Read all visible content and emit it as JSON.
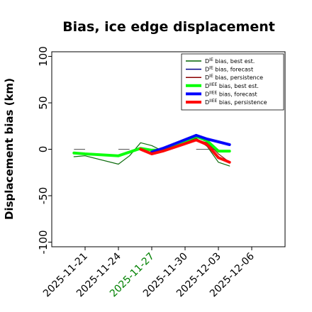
{
  "chart_data": {
    "type": "line",
    "title": "Bias, ice edge displacement",
    "xlabel": "",
    "ylabel": "Displacement bias (km)",
    "ylim": [
      -105,
      105
    ],
    "xlim": [
      "2025-11-18",
      "2025-12-09"
    ],
    "y_ticks": [
      100,
      50,
      0,
      -50,
      -100
    ],
    "x_ticks": [
      {
        "date": "2025-11-21",
        "label": "2025-11-21",
        "color": "#000000"
      },
      {
        "date": "2025-11-24",
        "label": "2025-11-24",
        "color": "#000000"
      },
      {
        "date": "2025-11-27",
        "label": "2025-11-27",
        "color": "#008000"
      },
      {
        "date": "2025-11-30",
        "label": "2025-11-30",
        "color": "#000000"
      },
      {
        "date": "2025-12-03",
        "label": "2025-12-03",
        "color": "#000000"
      },
      {
        "date": "2025-12-06",
        "label": "2025-12-06",
        "color": "#000000"
      }
    ],
    "grid": false,
    "legend_position": "upper-right",
    "zero_line": {
      "segments": [
        [
          "2025-11-20",
          "2025-11-21"
        ],
        [
          "2025-11-24",
          "2025-11-25"
        ],
        [
          "2025-11-27",
          "2025-11-28"
        ],
        [
          "2025-12-01",
          "2025-12-03"
        ]
      ],
      "y": 0,
      "color": "#555555"
    },
    "series": [
      {
        "name": "D^IE bias, best est.",
        "legend_main": "D",
        "legend_sup": "IE",
        "legend_rest": " bias, best est.",
        "color": "#006400",
        "style": "thin",
        "points": [
          [
            "2025-11-20",
            -8
          ],
          [
            "2025-11-21",
            -7
          ],
          [
            "2025-11-24",
            -16
          ],
          [
            "2025-11-25",
            -7
          ],
          [
            "2025-11-26",
            7
          ],
          [
            "2025-11-27",
            4
          ],
          [
            "2025-11-28",
            -2
          ],
          [
            "2025-12-01",
            12
          ],
          [
            "2025-12-02",
            3
          ],
          [
            "2025-12-03",
            -14
          ],
          [
            "2025-12-04",
            -18
          ]
        ]
      },
      {
        "name": "D^IE bias, forecast",
        "legend_main": "D",
        "legend_sup": "IE",
        "legend_rest": " bias, forecast",
        "color": "#00008B",
        "style": "thin",
        "points": [
          [
            "2025-11-27",
            -3
          ],
          [
            "2025-11-28",
            1
          ],
          [
            "2025-12-01",
            16
          ],
          [
            "2025-12-02",
            11
          ],
          [
            "2025-12-03",
            8
          ],
          [
            "2025-12-04",
            5
          ]
        ]
      },
      {
        "name": "D^IE bias, persistence",
        "legend_main": "D",
        "legend_sup": "IE",
        "legend_rest": " bias, persistence",
        "color": "#8B0000",
        "style": "thin",
        "points": [
          [
            "2025-11-27",
            -2
          ],
          [
            "2025-11-28",
            0
          ],
          [
            "2025-12-01",
            10
          ],
          [
            "2025-12-02",
            7
          ],
          [
            "2025-12-03",
            -5
          ],
          [
            "2025-12-04",
            -14
          ]
        ]
      },
      {
        "name": "D^IIEE bias, best est.",
        "legend_main": "D",
        "legend_sup": "IIEE",
        "legend_rest": " bias, best est.",
        "color": "#00FF00",
        "style": "thick",
        "points": [
          [
            "2025-11-20",
            -4
          ],
          [
            "2025-11-21",
            -5
          ],
          [
            "2025-11-24",
            -7
          ],
          [
            "2025-11-26",
            1
          ],
          [
            "2025-11-27",
            -1
          ],
          [
            "2025-11-28",
            -1
          ],
          [
            "2025-12-01",
            14
          ],
          [
            "2025-12-02",
            9
          ],
          [
            "2025-12-03",
            -2
          ],
          [
            "2025-12-04",
            -2
          ]
        ]
      },
      {
        "name": "D^IIEE bias, forecast",
        "legend_main": "D",
        "legend_sup": "IIEE",
        "legend_rest": " bias, forecast",
        "color": "#0000FF",
        "style": "thick",
        "points": [
          [
            "2025-11-27",
            -3
          ],
          [
            "2025-11-28",
            1
          ],
          [
            "2025-12-01",
            15
          ],
          [
            "2025-12-02",
            11
          ],
          [
            "2025-12-03",
            8
          ],
          [
            "2025-12-04",
            5
          ]
        ]
      },
      {
        "name": "D^IIEE bias, persistence",
        "legend_main": "D",
        "legend_sup": "IIEE",
        "legend_rest": " bias, persistence",
        "color": "#FF0000",
        "style": "thick",
        "points": [
          [
            "2025-11-26",
            0
          ],
          [
            "2025-11-27",
            -5
          ],
          [
            "2025-11-28",
            -2
          ],
          [
            "2025-12-01",
            10
          ],
          [
            "2025-12-02",
            5
          ],
          [
            "2025-12-03",
            -9
          ],
          [
            "2025-12-04",
            -14
          ]
        ]
      }
    ]
  }
}
